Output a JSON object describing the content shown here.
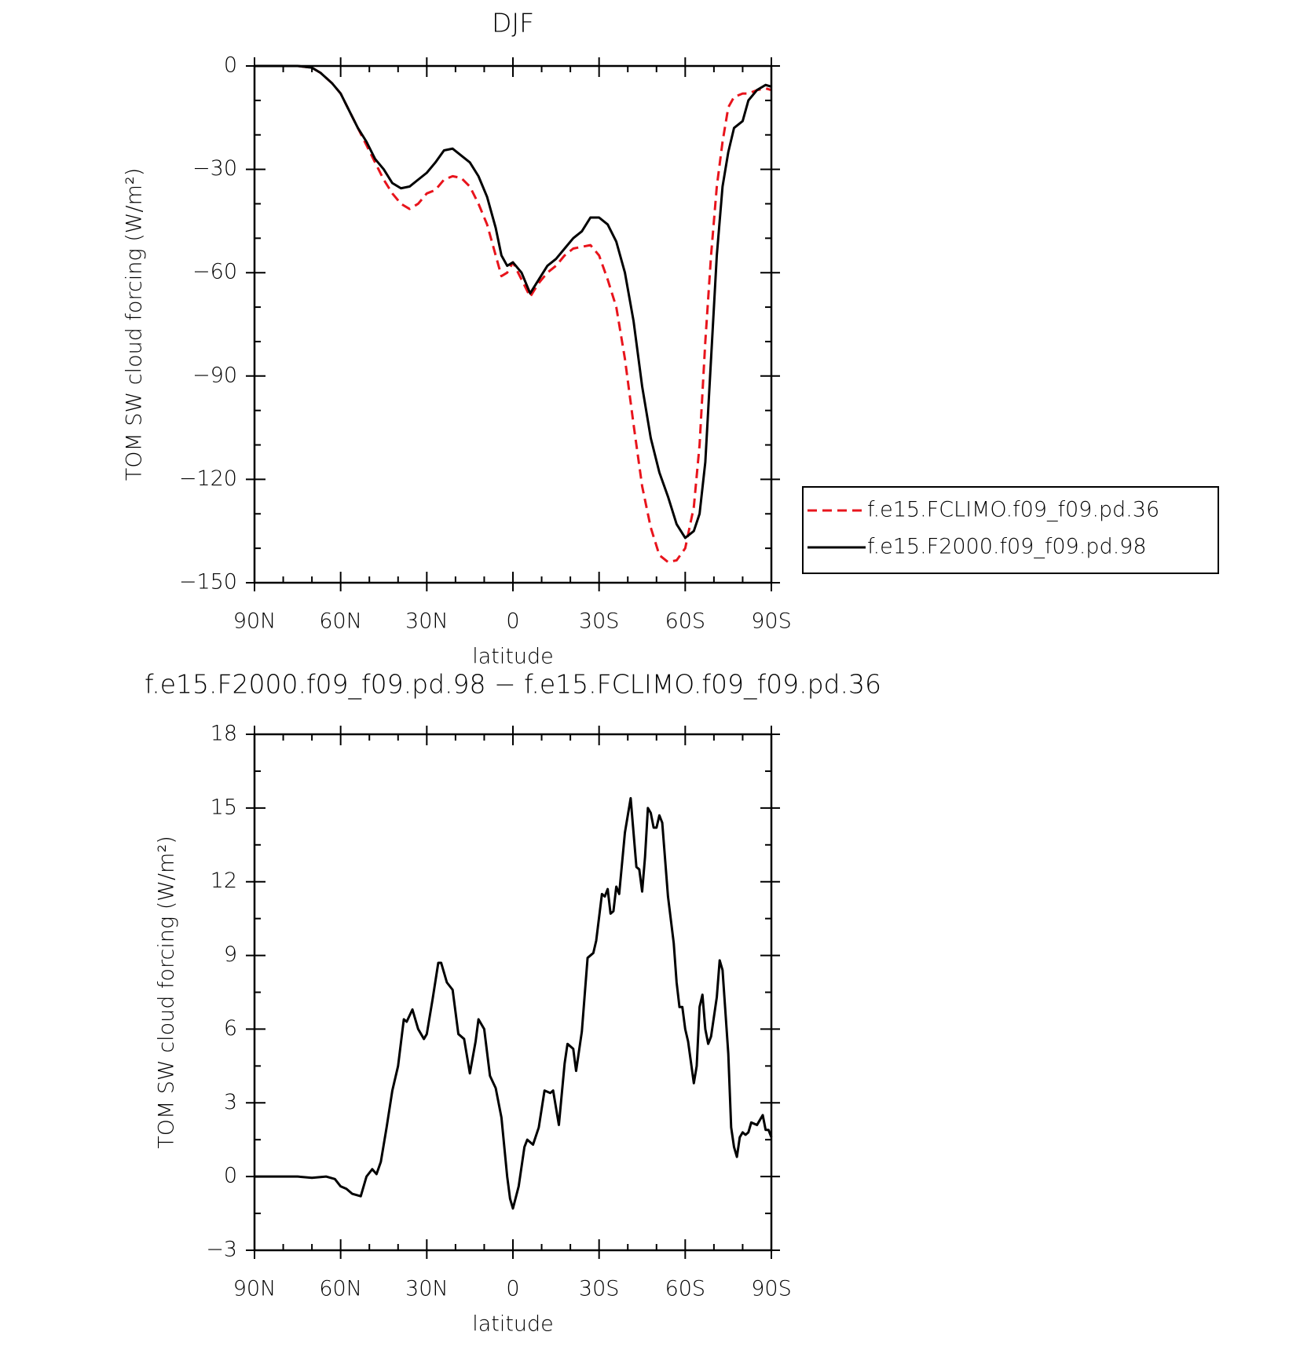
{
  "chart_data": [
    {
      "type": "line",
      "title": "DJF",
      "xlabel": "latitude",
      "ylabel": "TOM SW cloud forcing (W/m²)",
      "xlim": [
        90,
        -90
      ],
      "xticks": [
        {
          "value": 90,
          "label": "90N"
        },
        {
          "value": 60,
          "label": "60N"
        },
        {
          "value": 30,
          "label": "30N"
        },
        0,
        {
          "value": -30,
          "label": "30S"
        },
        {
          "value": -60,
          "label": "60S"
        },
        {
          "value": -90,
          "label": "90S"
        }
      ],
      "ylim": [
        -150,
        0
      ],
      "yticks": [
        0,
        {
          "value": -30,
          "label": "−30"
        },
        {
          "value": -60,
          "label": "−60"
        },
        {
          "value": -90,
          "label": "−90"
        },
        {
          "value": -120,
          "label": "−120"
        },
        {
          "value": -150,
          "label": "−150"
        }
      ],
      "legend": "right",
      "x": [
        90,
        80,
        75,
        70,
        67,
        63,
        60,
        57,
        54,
        51,
        48,
        45,
        42,
        39,
        36,
        33,
        30,
        27,
        24,
        21,
        18,
        15,
        12,
        9,
        6,
        4,
        2,
        0,
        -3,
        -6,
        -9,
        -12,
        -15,
        -18,
        -21,
        -24,
        -27,
        -30,
        -33,
        -36,
        -39,
        -42,
        -45,
        -48,
        -51,
        -54,
        -57,
        -60,
        -63,
        -65,
        -67,
        -69,
        -71,
        -73,
        -75,
        -77,
        -80,
        -82,
        -85,
        -88,
        -90
      ],
      "series": [
        {
          "name": "f.e15.FCLIMO.f09_f09.pd.36",
          "color": "#e8141c",
          "dashed": true,
          "values": [
            0,
            0,
            0,
            -0.5,
            -2,
            -5,
            -8,
            -13,
            -18,
            -23,
            -28,
            -33,
            -37,
            -40,
            -41.5,
            -40,
            -37,
            -36,
            -33,
            -32,
            -32.5,
            -35,
            -40,
            -46,
            -55,
            -61,
            -60,
            -57,
            -62,
            -67,
            -63,
            -60,
            -58,
            -55,
            -53,
            -52.5,
            -52,
            -55,
            -62,
            -70,
            -85,
            -104,
            -122,
            -134,
            -142,
            -144,
            -143.5,
            -140,
            -128,
            -110,
            -80,
            -55,
            -35,
            -22,
            -12,
            -9,
            -8,
            -8,
            -7,
            -6.5,
            -7
          ]
        },
        {
          "name": "f.e15.F2000.f09_f09.pd.98",
          "color": "#000000",
          "dashed": false,
          "values": [
            0,
            0,
            0,
            -0.5,
            -2,
            -5,
            -8,
            -13,
            -18,
            -22,
            -27,
            -30,
            -34,
            -35.5,
            -35,
            -33,
            -31,
            -28,
            -24.5,
            -24,
            -26,
            -28,
            -32,
            -38,
            -47,
            -55,
            -58,
            -57,
            -60,
            -66,
            -62,
            -58,
            -56,
            -53,
            -50,
            -48,
            -44,
            -44,
            -46,
            -51,
            -60,
            -74,
            -93,
            -108,
            -118,
            -125,
            -133,
            -137,
            -135,
            -130,
            -115,
            -85,
            -55,
            -35,
            -25,
            -18,
            -16,
            -10,
            -7,
            -5.5,
            -6
          ]
        }
      ]
    },
    {
      "type": "line",
      "title": "f.e15.F2000.f09_f09.pd.98 − f.e15.FCLIMO.f09_f09.pd.36",
      "xlabel": "latitude",
      "ylabel": "TOM SW cloud forcing (W/m²)",
      "xlim": [
        90,
        -90
      ],
      "xticks": [
        {
          "value": 90,
          "label": "90N"
        },
        {
          "value": 60,
          "label": "60N"
        },
        {
          "value": 30,
          "label": "30N"
        },
        0,
        {
          "value": -30,
          "label": "30S"
        },
        {
          "value": -60,
          "label": "60S"
        },
        {
          "value": -90,
          "label": "90S"
        }
      ],
      "ylim": [
        -3,
        18
      ],
      "yticks": [
        {
          "value": -3,
          "label": "−3"
        },
        0,
        3,
        6,
        9,
        12,
        15,
        18
      ],
      "color": "#000000",
      "x": [
        90,
        75,
        70,
        65,
        62,
        60,
        58,
        56,
        53,
        51,
        49,
        47.5,
        46,
        44,
        42,
        40,
        38,
        37,
        35,
        33,
        31,
        30,
        28,
        26,
        25,
        23,
        21,
        19,
        17,
        15,
        13,
        12,
        10,
        8,
        6,
        4,
        2,
        1,
        0,
        -2,
        -4,
        -5,
        -7,
        -9,
        -11,
        -13,
        -14,
        -16,
        -18,
        -19,
        -21,
        -22,
        -24,
        -26,
        -28,
        -29,
        -31,
        -32,
        -33,
        -34,
        -35,
        -36,
        -37,
        -39,
        -41,
        -42,
        -43,
        -44,
        -45,
        -46,
        -47,
        -48,
        -49,
        -50,
        -51,
        -52,
        -54,
        -56,
        -57,
        -58,
        -59,
        -60,
        -61,
        -63,
        -64,
        -65,
        -66,
        -67,
        -68,
        -69,
        -71,
        -72,
        -73,
        -75,
        -76,
        -77,
        -78,
        -79,
        -80,
        -81,
        -82,
        -83,
        -85,
        -86,
        -87,
        -88,
        -89,
        -90
      ],
      "values": [
        0,
        0,
        -0.05,
        0,
        -0.1,
        -0.4,
        -0.5,
        -0.7,
        -0.8,
        0,
        0.3,
        0.1,
        0.6,
        2,
        3.5,
        4.5,
        6.4,
        6.3,
        6.8,
        6,
        5.6,
        5.8,
        7.2,
        8.7,
        8.7,
        7.9,
        7.6,
        5.8,
        5.6,
        4.2,
        5.5,
        6.4,
        6,
        4.1,
        3.6,
        2.4,
        0,
        -0.9,
        -1.3,
        -0.4,
        1.2,
        1.5,
        1.3,
        2,
        3.5,
        3.4,
        3.5,
        2.1,
        4.6,
        5.4,
        5.2,
        4.3,
        5.9,
        8.9,
        9.1,
        9.6,
        11.5,
        11.4,
        11.7,
        10.7,
        10.8,
        11.8,
        11.5,
        14,
        15.4,
        14,
        12.6,
        12.5,
        11.6,
        13,
        15,
        14.8,
        14.2,
        14.2,
        14.7,
        14.4,
        11.4,
        9.5,
        7.9,
        6.9,
        6.9,
        6,
        5.5,
        3.8,
        4.5,
        6.9,
        7.4,
        6,
        5.4,
        5.7,
        7.3,
        8.8,
        8.4,
        5,
        2,
        1.2,
        0.8,
        1.6,
        1.8,
        1.7,
        1.8,
        2.2,
        2.1,
        2.3,
        2.5,
        1.9,
        1.9,
        1.6
      ]
    }
  ]
}
